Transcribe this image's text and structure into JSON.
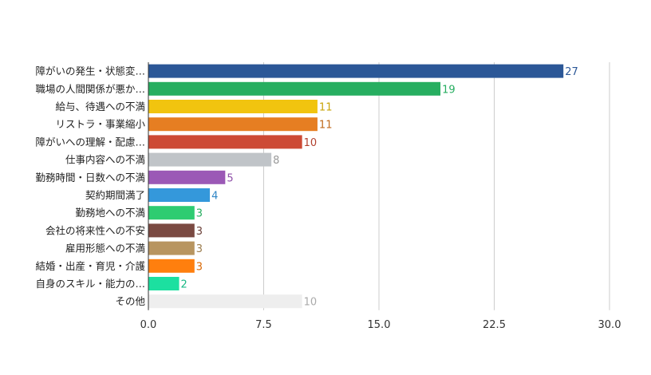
{
  "chart_data": {
    "type": "bar",
    "orientation": "horizontal",
    "categories": [
      "障がいの発生・状態変…",
      "職場の人間関係が悪か…",
      "給与、待遇への不満",
      "リストラ・事業縮小",
      "障がいへの理解・配慮…",
      "仕事内容への不満",
      "勤務時間・日数への不満",
      "契約期間満了",
      "勤務地への不満",
      "会社の将来性への不安",
      "雇用形態への不満",
      "結婚・出産・育児・介護",
      "自身のスキル・能力の…",
      "その他"
    ],
    "values": [
      27,
      19,
      11,
      11,
      10,
      8,
      5,
      4,
      3,
      3,
      3,
      3,
      2,
      10
    ],
    "colors": [
      "#2b5797",
      "#27ae60",
      "#f1c40f",
      "#e67e22",
      "#cd4a35",
      "#c0c4c8",
      "#9b59b6",
      "#3498db",
      "#2ecc71",
      "#7a4a42",
      "#b89560",
      "#ff7f0e",
      "#1ce0a0",
      "#eeeeee"
    ],
    "label_colors": [
      "#2b5797",
      "#27ae60",
      "#c9a40a",
      "#c06a1c",
      "#b2412f",
      "#999999",
      "#8e4fa8",
      "#2f86c6",
      "#27ae60",
      "#6b4039",
      "#9c7d4e",
      "#d96a08",
      "#18b884",
      "#aaaaaa"
    ],
    "xlim": [
      0,
      30
    ],
    "xticks": [
      "0.0",
      "7.5",
      "15.0",
      "22.5",
      "30.0"
    ],
    "xtick_values": [
      0,
      7.5,
      15,
      22.5,
      30
    ],
    "grid": true,
    "xlabel": "",
    "ylabel": ""
  }
}
